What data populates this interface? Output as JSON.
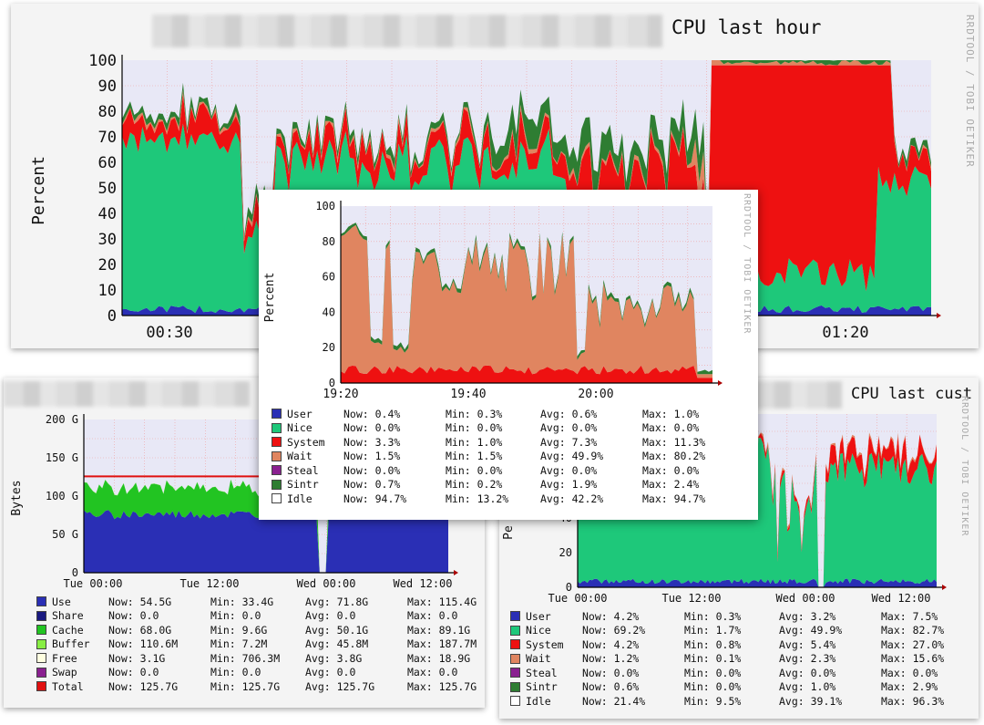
{
  "colors": {
    "user": "#2a2fb5",
    "nice": "#1ec87a",
    "system": "#ee1111",
    "wait": "#e08560",
    "steal": "#8a2090",
    "sintr": "#2e7d32",
    "idle": "#ffffff",
    "share": "#1a1a80",
    "cache": "#22c422",
    "buffer": "#88ee44",
    "free": "#ffffe0",
    "swap": "#8a2090",
    "total": "#e01010",
    "plot_bg": "#e8e8f6",
    "grid": "#f0a0a0"
  },
  "cpu_hour": {
    "title": "CPU last hour",
    "side_label": "RRDTOOL / TOBI OETIKER",
    "ylabel": "Percent",
    "y_ticks": [
      "0",
      "10",
      "20",
      "30",
      "40",
      "50",
      "60",
      "70",
      "80",
      "90",
      "100"
    ],
    "x_ticks": [
      "00:30",
      "01:20"
    ]
  },
  "cpu_zoom": {
    "side_label": "RRDTOOL / TOBI OETIKER",
    "ylabel": "Percent",
    "y_ticks": [
      "0",
      "20",
      "40",
      "60",
      "80",
      "100"
    ],
    "x_ticks": [
      "19:20",
      "19:40",
      "20:00"
    ],
    "legend": [
      {
        "name": "User",
        "now": "0.4%",
        "min": "0.3%",
        "avg": "0.6%",
        "max": "1.0%",
        "key": "user"
      },
      {
        "name": "Nice",
        "now": "0.0%",
        "min": "0.0%",
        "avg": "0.0%",
        "max": "0.0%",
        "key": "nice"
      },
      {
        "name": "System",
        "now": "3.3%",
        "min": "1.0%",
        "avg": "7.3%",
        "max": "11.3%",
        "key": "system"
      },
      {
        "name": "Wait",
        "now": "1.5%",
        "min": "1.5%",
        "avg": "49.9%",
        "max": "80.2%",
        "key": "wait"
      },
      {
        "name": "Steal",
        "now": "0.0%",
        "min": "0.0%",
        "avg": "0.0%",
        "max": "0.0%",
        "key": "steal"
      },
      {
        "name": "Sintr",
        "now": "0.7%",
        "min": "0.2%",
        "avg": "1.9%",
        "max": "2.4%",
        "key": "sintr"
      },
      {
        "name": "Idle",
        "now": "94.7%",
        "min": "13.2%",
        "avg": "42.2%",
        "max": "94.7%",
        "key": "idle"
      }
    ]
  },
  "memory": {
    "ylabel": "Bytes",
    "y_ticks": [
      "0",
      "50 G",
      "100 G",
      "150 G",
      "200 G"
    ],
    "x_ticks": [
      "Tue 00:00",
      "Tue 12:00",
      "Wed 00:00",
      "Wed 12:00"
    ],
    "legend": [
      {
        "name": "Use",
        "now": "54.5G",
        "min": "33.4G",
        "avg": "71.8G",
        "max": "115.4G",
        "key": "user"
      },
      {
        "name": "Share",
        "now": "0.0",
        "min": "0.0",
        "avg": "0.0",
        "max": "0.0",
        "key": "share"
      },
      {
        "name": "Cache",
        "now": "68.0G",
        "min": "9.6G",
        "avg": "50.1G",
        "max": "89.1G",
        "key": "cache"
      },
      {
        "name": "Buffer",
        "now": "110.6M",
        "min": "7.2M",
        "avg": "45.8M",
        "max": "187.7M",
        "key": "buffer"
      },
      {
        "name": "Free",
        "now": "3.1G",
        "min": "706.3M",
        "avg": "3.8G",
        "max": "18.9G",
        "key": "free"
      },
      {
        "name": "Swap",
        "now": "0.0",
        "min": "0.0",
        "avg": "0.0",
        "max": "0.0",
        "key": "swap"
      },
      {
        "name": "Total",
        "now": "125.7G",
        "min": "125.7G",
        "avg": "125.7G",
        "max": "125.7G",
        "key": "total"
      }
    ]
  },
  "cpu_custom": {
    "title": "CPU last cust",
    "side_label": "RRDTOOL / TOBI OETIKER",
    "ylabel": "Pe",
    "y_ticks": [
      "0",
      "20",
      "40"
    ],
    "x_ticks": [
      "Tue 00:00",
      "Tue 12:00",
      "Wed 00:00",
      "Wed 12:00"
    ],
    "legend": [
      {
        "name": "User",
        "now": "4.2%",
        "min": "0.3%",
        "avg": "3.2%",
        "max": "7.5%",
        "key": "user"
      },
      {
        "name": "Nice",
        "now": "69.2%",
        "min": "1.7%",
        "avg": "49.9%",
        "max": "82.7%",
        "key": "nice"
      },
      {
        "name": "System",
        "now": "4.2%",
        "min": "0.8%",
        "avg": "5.4%",
        "max": "27.0%",
        "key": "system"
      },
      {
        "name": "Wait",
        "now": "1.2%",
        "min": "0.1%",
        "avg": "2.3%",
        "max": "15.6%",
        "key": "wait"
      },
      {
        "name": "Steal",
        "now": "0.0%",
        "min": "0.0%",
        "avg": "0.0%",
        "max": "0.0%",
        "key": "steal"
      },
      {
        "name": "Sintr",
        "now": "0.6%",
        "min": "0.0%",
        "avg": "1.0%",
        "max": "2.9%",
        "key": "sintr"
      },
      {
        "name": "Idle",
        "now": "21.4%",
        "min": "9.5%",
        "avg": "39.1%",
        "max": "96.3%",
        "key": "idle"
      }
    ]
  }
}
